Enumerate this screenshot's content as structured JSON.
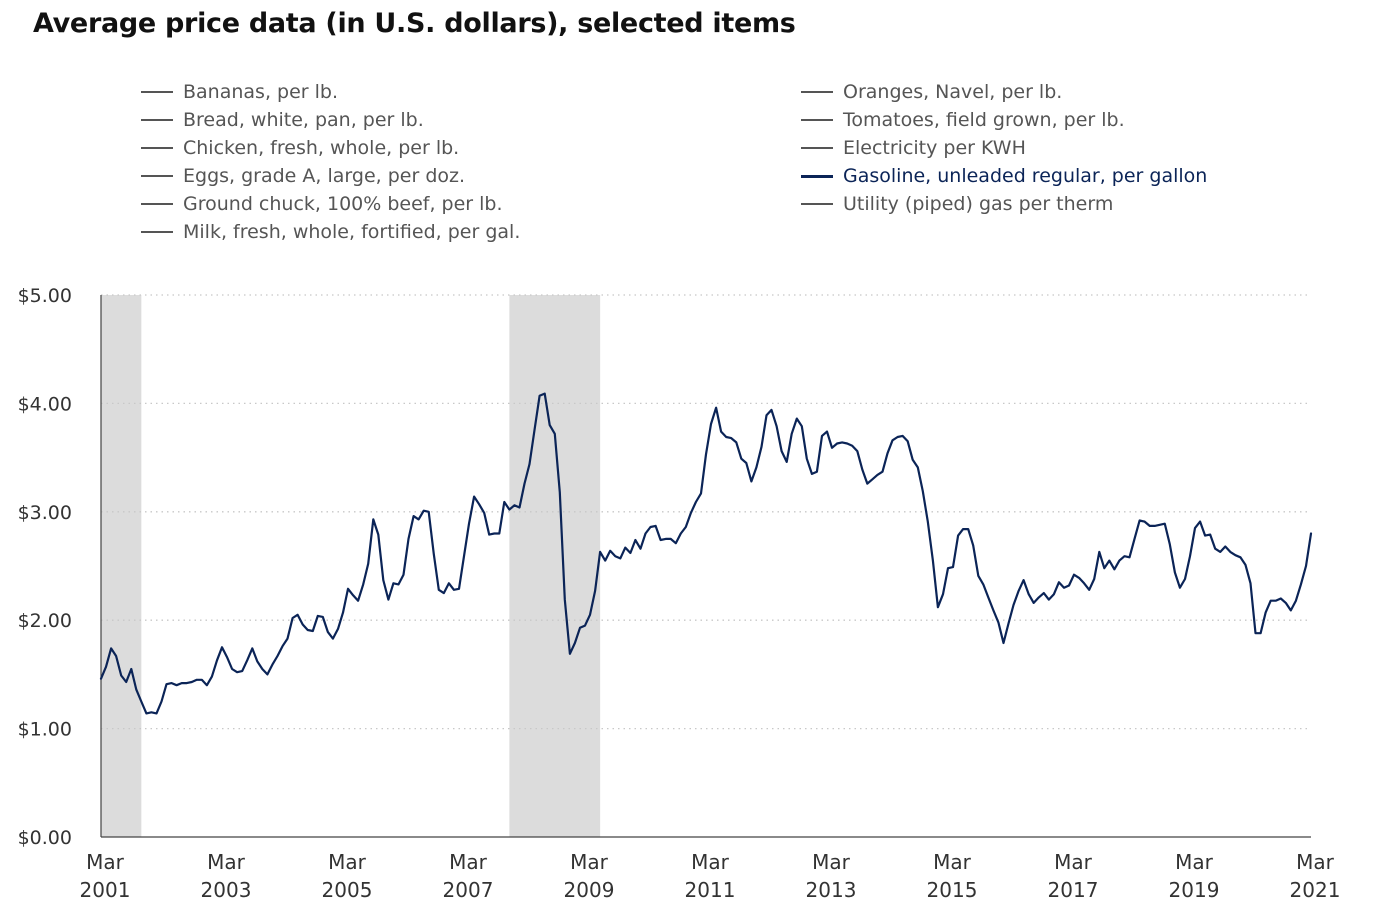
{
  "title": "Average price data (in U.S. dollars), selected items",
  "legend": {
    "left": [
      {
        "label": "Bananas, per lb."
      },
      {
        "label": "Bread, white, pan, per lb."
      },
      {
        "label": "Chicken, fresh, whole, per lb."
      },
      {
        "label": "Eggs, grade A, large, per doz."
      },
      {
        "label": "Ground chuck, 100% beef, per lb."
      },
      {
        "label": "Milk, fresh, whole, fortified, per gal."
      }
    ],
    "right": [
      {
        "label": "Oranges, Navel, per lb."
      },
      {
        "label": "Tomatoes, field grown, per lb."
      },
      {
        "label": "Electricity per KWH"
      },
      {
        "label": "Gasoline, unleaded regular, per gallon",
        "active": true
      },
      {
        "label": "Utility (piped) gas per therm"
      }
    ]
  },
  "chart_data": {
    "type": "line",
    "ylim": [
      0,
      5
    ],
    "xlim": [
      "2001-03",
      "2021-03"
    ],
    "y_ticks": [
      {
        "value": 0,
        "label": "$0.00"
      },
      {
        "value": 1,
        "label": "$1.00"
      },
      {
        "value": 2,
        "label": "$2.00"
      },
      {
        "value": 3,
        "label": "$3.00"
      },
      {
        "value": 4,
        "label": "$4.00"
      },
      {
        "value": 5,
        "label": "$5.00"
      }
    ],
    "x_ticks": [
      {
        "date": "2001-03",
        "month": "Mar",
        "year": "2001"
      },
      {
        "date": "2003-03",
        "month": "Mar",
        "year": "2003"
      },
      {
        "date": "2005-03",
        "month": "Mar",
        "year": "2005"
      },
      {
        "date": "2007-03",
        "month": "Mar",
        "year": "2007"
      },
      {
        "date": "2009-03",
        "month": "Mar",
        "year": "2009"
      },
      {
        "date": "2011-03",
        "month": "Mar",
        "year": "2011"
      },
      {
        "date": "2013-03",
        "month": "Mar",
        "year": "2013"
      },
      {
        "date": "2015-03",
        "month": "Mar",
        "year": "2015"
      },
      {
        "date": "2017-03",
        "month": "Mar",
        "year": "2017"
      },
      {
        "date": "2019-03",
        "month": "Mar",
        "year": "2019"
      },
      {
        "date": "2021-03",
        "month": "Mar",
        "year": "2021"
      }
    ],
    "grid": true,
    "recessions": [
      {
        "start": "2001-03",
        "end": "2001-11"
      },
      {
        "start": "2007-12",
        "end": "2009-06"
      }
    ],
    "series": [
      {
        "name": "Gasoline, unleaded regular, per gallon",
        "color": "#0b2457",
        "points": [
          [
            "2001-03",
            1.46
          ],
          [
            "2001-04",
            1.57
          ],
          [
            "2001-05",
            1.74
          ],
          [
            "2001-06",
            1.67
          ],
          [
            "2001-07",
            1.49
          ],
          [
            "2001-08",
            1.43
          ],
          [
            "2001-09",
            1.55
          ],
          [
            "2001-10",
            1.36
          ],
          [
            "2001-11",
            1.25
          ],
          [
            "2001-12",
            1.14
          ],
          [
            "2002-01",
            1.15
          ],
          [
            "2002-02",
            1.14
          ],
          [
            "2002-03",
            1.25
          ],
          [
            "2002-04",
            1.41
          ],
          [
            "2002-05",
            1.42
          ],
          [
            "2002-06",
            1.4
          ],
          [
            "2002-07",
            1.42
          ],
          [
            "2002-08",
            1.42
          ],
          [
            "2002-09",
            1.43
          ],
          [
            "2002-10",
            1.45
          ],
          [
            "2002-11",
            1.45
          ],
          [
            "2002-12",
            1.4
          ],
          [
            "2003-01",
            1.48
          ],
          [
            "2003-02",
            1.63
          ],
          [
            "2003-03",
            1.75
          ],
          [
            "2003-04",
            1.66
          ],
          [
            "2003-05",
            1.55
          ],
          [
            "2003-06",
            1.52
          ],
          [
            "2003-07",
            1.53
          ],
          [
            "2003-08",
            1.63
          ],
          [
            "2003-09",
            1.74
          ],
          [
            "2003-10",
            1.62
          ],
          [
            "2003-11",
            1.55
          ],
          [
            "2003-12",
            1.5
          ],
          [
            "2004-01",
            1.59
          ],
          [
            "2004-02",
            1.67
          ],
          [
            "2004-03",
            1.76
          ],
          [
            "2004-04",
            1.83
          ],
          [
            "2004-05",
            2.02
          ],
          [
            "2004-06",
            2.05
          ],
          [
            "2004-07",
            1.96
          ],
          [
            "2004-08",
            1.91
          ],
          [
            "2004-09",
            1.9
          ],
          [
            "2004-10",
            2.04
          ],
          [
            "2004-11",
            2.03
          ],
          [
            "2004-12",
            1.89
          ],
          [
            "2005-01",
            1.83
          ],
          [
            "2005-02",
            1.92
          ],
          [
            "2005-03",
            2.07
          ],
          [
            "2005-04",
            2.29
          ],
          [
            "2005-05",
            2.23
          ],
          [
            "2005-06",
            2.18
          ],
          [
            "2005-07",
            2.33
          ],
          [
            "2005-08",
            2.52
          ],
          [
            "2005-09",
            2.93
          ],
          [
            "2005-10",
            2.79
          ],
          [
            "2005-11",
            2.37
          ],
          [
            "2005-12",
            2.19
          ],
          [
            "2006-01",
            2.34
          ],
          [
            "2006-02",
            2.33
          ],
          [
            "2006-03",
            2.42
          ],
          [
            "2006-04",
            2.75
          ],
          [
            "2006-05",
            2.96
          ],
          [
            "2006-06",
            2.93
          ],
          [
            "2006-07",
            3.01
          ],
          [
            "2006-08",
            3.0
          ],
          [
            "2006-09",
            2.61
          ],
          [
            "2006-10",
            2.28
          ],
          [
            "2006-11",
            2.25
          ],
          [
            "2006-12",
            2.34
          ],
          [
            "2007-01",
            2.28
          ],
          [
            "2007-02",
            2.29
          ],
          [
            "2007-03",
            2.59
          ],
          [
            "2007-04",
            2.89
          ],
          [
            "2007-05",
            3.14
          ],
          [
            "2007-06",
            3.07
          ],
          [
            "2007-07",
            2.99
          ],
          [
            "2007-08",
            2.79
          ],
          [
            "2007-09",
            2.8
          ],
          [
            "2007-10",
            2.8
          ],
          [
            "2007-11",
            3.09
          ],
          [
            "2007-12",
            3.02
          ],
          [
            "2008-01",
            3.06
          ],
          [
            "2008-02",
            3.04
          ],
          [
            "2008-03",
            3.26
          ],
          [
            "2008-04",
            3.44
          ],
          [
            "2008-05",
            3.76
          ],
          [
            "2008-06",
            4.07
          ],
          [
            "2008-07",
            4.09
          ],
          [
            "2008-08",
            3.8
          ],
          [
            "2008-09",
            3.72
          ],
          [
            "2008-10",
            3.18
          ],
          [
            "2008-11",
            2.19
          ],
          [
            "2008-12",
            1.69
          ],
          [
            "2009-01",
            1.79
          ],
          [
            "2009-02",
            1.93
          ],
          [
            "2009-03",
            1.95
          ],
          [
            "2009-04",
            2.05
          ],
          [
            "2009-05",
            2.27
          ],
          [
            "2009-06",
            2.63
          ],
          [
            "2009-07",
            2.55
          ],
          [
            "2009-08",
            2.64
          ],
          [
            "2009-09",
            2.59
          ],
          [
            "2009-10",
            2.57
          ],
          [
            "2009-11",
            2.67
          ],
          [
            "2009-12",
            2.62
          ],
          [
            "2010-01",
            2.74
          ],
          [
            "2010-02",
            2.66
          ],
          [
            "2010-03",
            2.8
          ],
          [
            "2010-04",
            2.86
          ],
          [
            "2010-05",
            2.87
          ],
          [
            "2010-06",
            2.74
          ],
          [
            "2010-07",
            2.75
          ],
          [
            "2010-08",
            2.75
          ],
          [
            "2010-09",
            2.71
          ],
          [
            "2010-10",
            2.8
          ],
          [
            "2010-11",
            2.86
          ],
          [
            "2010-12",
            2.99
          ],
          [
            "2011-01",
            3.09
          ],
          [
            "2011-02",
            3.17
          ],
          [
            "2011-03",
            3.53
          ],
          [
            "2011-04",
            3.81
          ],
          [
            "2011-05",
            3.96
          ],
          [
            "2011-06",
            3.74
          ],
          [
            "2011-07",
            3.69
          ],
          [
            "2011-08",
            3.68
          ],
          [
            "2011-09",
            3.64
          ],
          [
            "2011-10",
            3.49
          ],
          [
            "2011-11",
            3.45
          ],
          [
            "2011-12",
            3.28
          ],
          [
            "2012-01",
            3.41
          ],
          [
            "2012-02",
            3.6
          ],
          [
            "2012-03",
            3.89
          ],
          [
            "2012-04",
            3.94
          ],
          [
            "2012-05",
            3.79
          ],
          [
            "2012-06",
            3.56
          ],
          [
            "2012-07",
            3.46
          ],
          [
            "2012-08",
            3.72
          ],
          [
            "2012-09",
            3.86
          ],
          [
            "2012-10",
            3.79
          ],
          [
            "2012-11",
            3.49
          ],
          [
            "2012-12",
            3.35
          ],
          [
            "2013-01",
            3.37
          ],
          [
            "2013-02",
            3.7
          ],
          [
            "2013-03",
            3.74
          ],
          [
            "2013-04",
            3.59
          ],
          [
            "2013-05",
            3.63
          ],
          [
            "2013-06",
            3.64
          ],
          [
            "2013-07",
            3.63
          ],
          [
            "2013-08",
            3.61
          ],
          [
            "2013-09",
            3.56
          ],
          [
            "2013-10",
            3.39
          ],
          [
            "2013-11",
            3.26
          ],
          [
            "2013-12",
            3.3
          ],
          [
            "2014-01",
            3.34
          ],
          [
            "2014-02",
            3.37
          ],
          [
            "2014-03",
            3.54
          ],
          [
            "2014-04",
            3.66
          ],
          [
            "2014-05",
            3.69
          ],
          [
            "2014-06",
            3.7
          ],
          [
            "2014-07",
            3.65
          ],
          [
            "2014-08",
            3.48
          ],
          [
            "2014-09",
            3.41
          ],
          [
            "2014-10",
            3.19
          ],
          [
            "2014-11",
            2.91
          ],
          [
            "2014-12",
            2.55
          ],
          [
            "2015-01",
            2.12
          ],
          [
            "2015-02",
            2.24
          ],
          [
            "2015-03",
            2.48
          ],
          [
            "2015-04",
            2.49
          ],
          [
            "2015-05",
            2.78
          ],
          [
            "2015-06",
            2.84
          ],
          [
            "2015-07",
            2.84
          ],
          [
            "2015-08",
            2.69
          ],
          [
            "2015-09",
            2.41
          ],
          [
            "2015-10",
            2.33
          ],
          [
            "2015-11",
            2.21
          ],
          [
            "2015-12",
            2.09
          ],
          [
            "2016-01",
            1.98
          ],
          [
            "2016-02",
            1.79
          ],
          [
            "2016-03",
            1.97
          ],
          [
            "2016-04",
            2.14
          ],
          [
            "2016-05",
            2.27
          ],
          [
            "2016-06",
            2.37
          ],
          [
            "2016-07",
            2.24
          ],
          [
            "2016-08",
            2.16
          ],
          [
            "2016-09",
            2.21
          ],
          [
            "2016-10",
            2.25
          ],
          [
            "2016-11",
            2.19
          ],
          [
            "2016-12",
            2.24
          ],
          [
            "2017-01",
            2.35
          ],
          [
            "2017-02",
            2.3
          ],
          [
            "2017-03",
            2.32
          ],
          [
            "2017-04",
            2.42
          ],
          [
            "2017-05",
            2.39
          ],
          [
            "2017-06",
            2.34
          ],
          [
            "2017-07",
            2.28
          ],
          [
            "2017-08",
            2.38
          ],
          [
            "2017-09",
            2.63
          ],
          [
            "2017-10",
            2.48
          ],
          [
            "2017-11",
            2.55
          ],
          [
            "2017-12",
            2.47
          ],
          [
            "2018-01",
            2.55
          ],
          [
            "2018-02",
            2.59
          ],
          [
            "2018-03",
            2.58
          ],
          [
            "2018-04",
            2.75
          ],
          [
            "2018-05",
            2.92
          ],
          [
            "2018-06",
            2.91
          ],
          [
            "2018-07",
            2.87
          ],
          [
            "2018-08",
            2.87
          ],
          [
            "2018-09",
            2.88
          ],
          [
            "2018-10",
            2.89
          ],
          [
            "2018-11",
            2.7
          ],
          [
            "2018-12",
            2.44
          ],
          [
            "2019-01",
            2.3
          ],
          [
            "2019-02",
            2.38
          ],
          [
            "2019-03",
            2.59
          ],
          [
            "2019-04",
            2.85
          ],
          [
            "2019-05",
            2.91
          ],
          [
            "2019-06",
            2.78
          ],
          [
            "2019-07",
            2.79
          ],
          [
            "2019-08",
            2.66
          ],
          [
            "2019-09",
            2.63
          ],
          [
            "2019-10",
            2.68
          ],
          [
            "2019-11",
            2.63
          ],
          [
            "2019-12",
            2.6
          ],
          [
            "2020-01",
            2.58
          ],
          [
            "2020-02",
            2.51
          ],
          [
            "2020-03",
            2.34
          ],
          [
            "2020-04",
            1.88
          ],
          [
            "2020-05",
            1.88
          ],
          [
            "2020-06",
            2.07
          ],
          [
            "2020-07",
            2.18
          ],
          [
            "2020-08",
            2.18
          ],
          [
            "2020-09",
            2.2
          ],
          [
            "2020-10",
            2.16
          ],
          [
            "2020-11",
            2.09
          ],
          [
            "2020-12",
            2.18
          ],
          [
            "2021-01",
            2.33
          ],
          [
            "2021-02",
            2.5
          ],
          [
            "2021-03",
            2.8
          ]
        ]
      }
    ]
  }
}
